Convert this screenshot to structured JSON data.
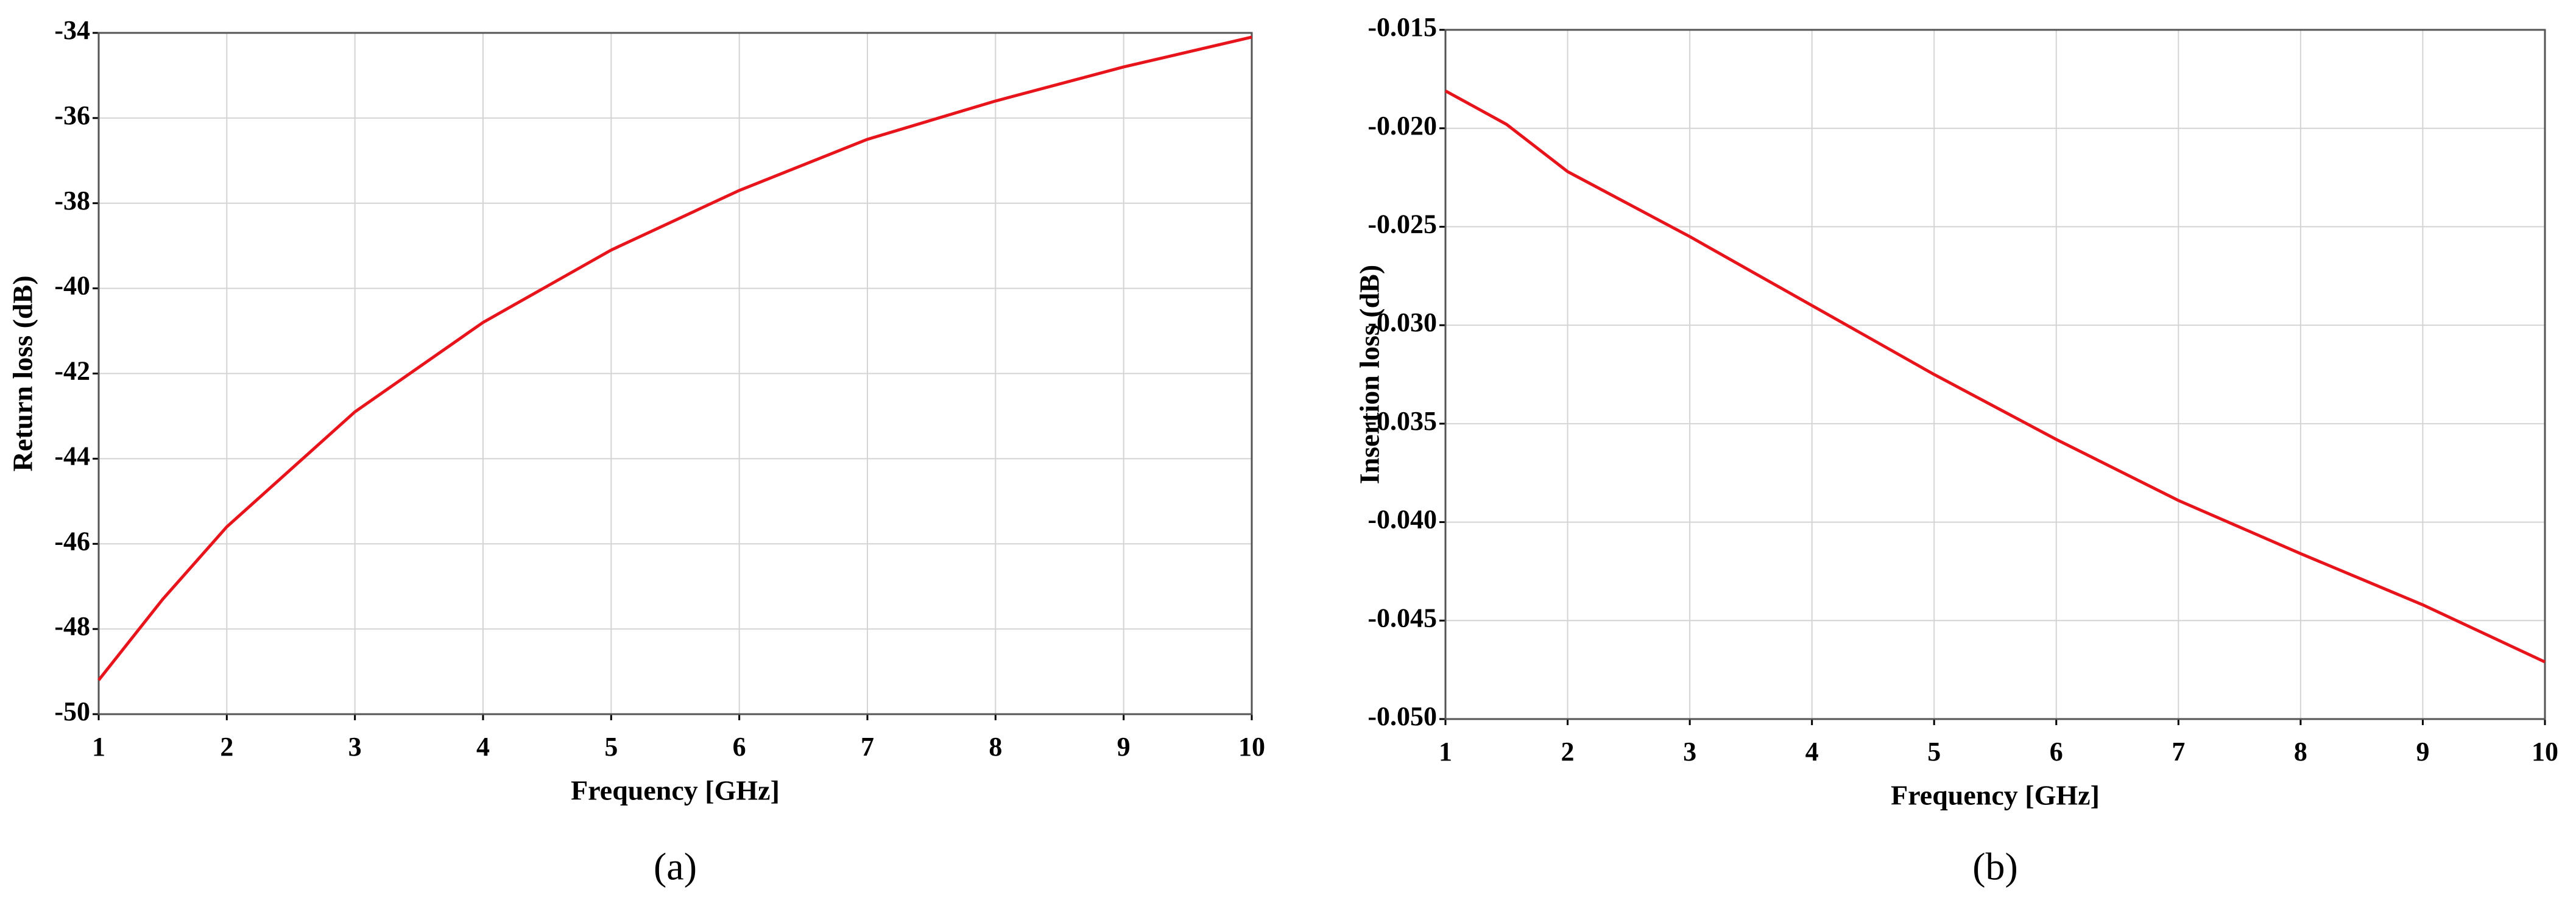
{
  "chart_data": [
    {
      "type": "line",
      "label": "(a)",
      "xlabel": "Frequency [GHz]",
      "ylabel": "Return loss (dB)",
      "x": [
        1,
        1.5,
        2,
        3,
        4,
        5,
        6,
        7,
        8,
        9,
        10
      ],
      "series": [
        {
          "name": "Return loss",
          "color": "#e8141c",
          "values": [
            -49.2,
            -47.3,
            -45.6,
            -42.9,
            -40.8,
            -39.1,
            -37.7,
            -36.5,
            -35.6,
            -34.8,
            -34.1
          ]
        }
      ],
      "xlim": [
        1,
        10
      ],
      "xticks": [
        1,
        2,
        3,
        4,
        5,
        6,
        7,
        8,
        9,
        10
      ],
      "ylim": [
        -50,
        -34
      ],
      "yticks": [
        -50,
        -48,
        -46,
        -44,
        -42,
        -40,
        -38,
        -36,
        -34
      ],
      "grid": true
    },
    {
      "type": "line",
      "label": "(b)",
      "xlabel": "Frequency [GHz]",
      "ylabel": "Insertion loss (dB)",
      "x": [
        1,
        1.5,
        2,
        3,
        4,
        5,
        6,
        7,
        8,
        9,
        10
      ],
      "series": [
        {
          "name": "Insertion loss",
          "color": "#e8141c",
          "values": [
            -0.0181,
            -0.0198,
            -0.0222,
            -0.0255,
            -0.029,
            -0.0325,
            -0.0358,
            -0.0389,
            -0.0416,
            -0.0442,
            -0.0471
          ]
        }
      ],
      "xlim": [
        1,
        10
      ],
      "xticks": [
        1,
        2,
        3,
        4,
        5,
        6,
        7,
        8,
        9,
        10
      ],
      "ylim": [
        -0.05,
        -0.015
      ],
      "yticks": [
        {
          "value": -0.05,
          "label": "-0.050"
        },
        -0.045,
        {
          "value": -0.04,
          "label": "-0.040"
        },
        -0.035,
        {
          "value": -0.03,
          "label": "-0.030"
        },
        -0.025,
        {
          "value": -0.02,
          "label": "-0.020"
        },
        -0.015
      ],
      "grid": true
    }
  ]
}
